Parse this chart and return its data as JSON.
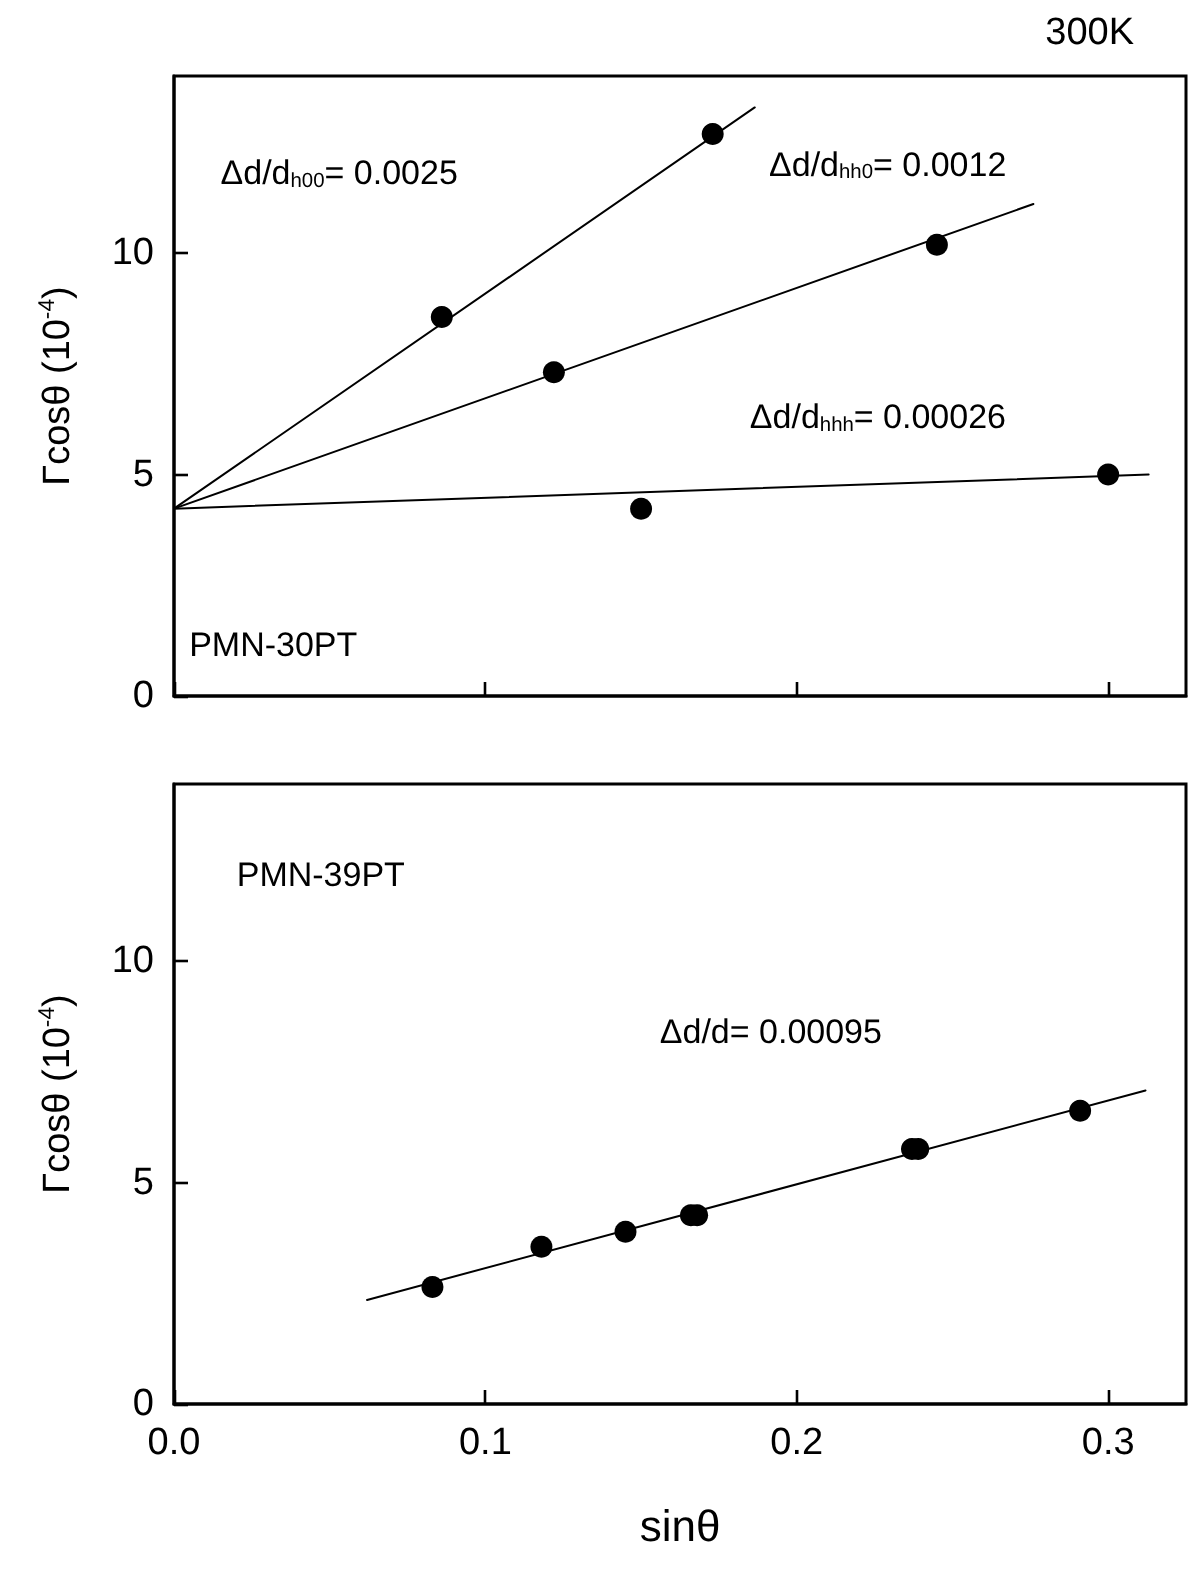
{
  "chart_data": [
    {
      "type": "scatter",
      "title": "300K",
      "ylabel": "Γcosθ (10$^{-4}$)",
      "xlim": [
        0,
        0.325
      ],
      "xticks": [
        0,
        0.1,
        0.2,
        0.3
      ],
      "ylim": [
        0,
        14
      ],
      "yticks": [
        0,
        5,
        10
      ],
      "tick_labels": "y",
      "grid": false,
      "series": [
        {
          "color": "#000000",
          "marker": "circle",
          "x": [
            0.086,
            0.173
          ],
          "values": [
            8.56,
            12.69
          ]
        },
        {
          "color": "#000000",
          "marker": "circle",
          "x": [
            0.122,
            0.245
          ],
          "values": [
            7.31,
            10.19
          ]
        },
        {
          "color": "#000000",
          "marker": "circle",
          "x": [
            0.15,
            0.3
          ],
          "values": [
            4.23,
            5.0
          ]
        },
        {
          "type": "line",
          "color": "#000000",
          "x": [
            0,
            0.1865
          ],
          "values": [
            4.23,
            13.29
          ]
        },
        {
          "type": "line",
          "color": "#000000",
          "x": [
            0,
            0.276
          ],
          "values": [
            4.23,
            11.11
          ]
        },
        {
          "type": "line",
          "color": "#000000",
          "x": [
            0,
            0.313
          ],
          "values": [
            4.23,
            5.0
          ]
        }
      ],
      "annotations": [
        "Δd/d$_{h00}$= 0.0025",
        "Δd/d$_{hh0}$= 0.0012",
        "Δd/d$_{hhh}$= 0.00026",
        "PMN-30PT"
      ]
    },
    {
      "type": "scatter",
      "xlabel": "sinθ",
      "ylabel": "Γcosθ (10$^{-4}$)",
      "xlim": [
        0,
        0.325
      ],
      "xticks": [
        {
          "value": 0,
          "label": "0.0"
        },
        0.1,
        0.2,
        0.3
      ],
      "ylim": [
        0,
        14
      ],
      "yticks": [
        0,
        5,
        10
      ],
      "grid": false,
      "series": [
        {
          "color": "#000000",
          "marker": "circle",
          "x": [
            0.083,
            0.118,
            0.145,
            0.166,
            0.168,
            0.237,
            0.239,
            0.291
          ],
          "values": [
            2.64,
            3.55,
            3.89,
            4.26,
            4.26,
            5.76,
            5.76,
            6.62
          ]
        },
        {
          "type": "line",
          "color": "#000000",
          "x": [
            0.062,
            0.312
          ],
          "values": [
            2.35,
            7.08
          ]
        }
      ],
      "annotations": [
        "PMN-39PT",
        "Δd/d= 0.00095"
      ]
    }
  ]
}
